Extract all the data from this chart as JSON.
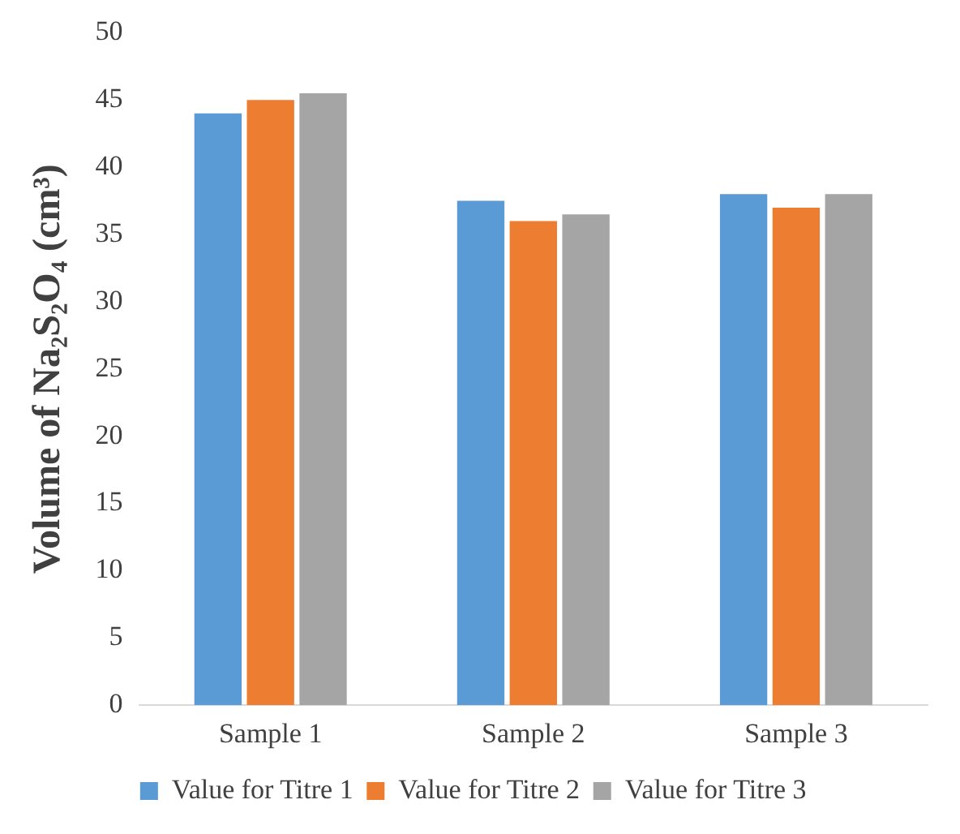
{
  "chart_data": {
    "type": "bar",
    "ylabel": "Volume of Na₂S₂O₄ (cm³)",
    "categories": [
      "Sample 1",
      "Sample 2",
      "Sample 3"
    ],
    "series": [
      {
        "name": "Value for Titre 1",
        "color": "#5b9bd5",
        "values": [
          44,
          37.5,
          38
        ]
      },
      {
        "name": "Value for Titre 2",
        "color": "#ed7d31",
        "values": [
          45,
          36,
          37
        ]
      },
      {
        "name": "Value for Titre 3",
        "color": "#a5a5a5",
        "values": [
          45.5,
          36.5,
          38
        ]
      }
    ],
    "ylim": [
      0,
      50
    ],
    "yticks": [
      0,
      5,
      10,
      15,
      20,
      25,
      30,
      35,
      40,
      45,
      50
    ],
    "grid": false,
    "legend": "bottom"
  }
}
